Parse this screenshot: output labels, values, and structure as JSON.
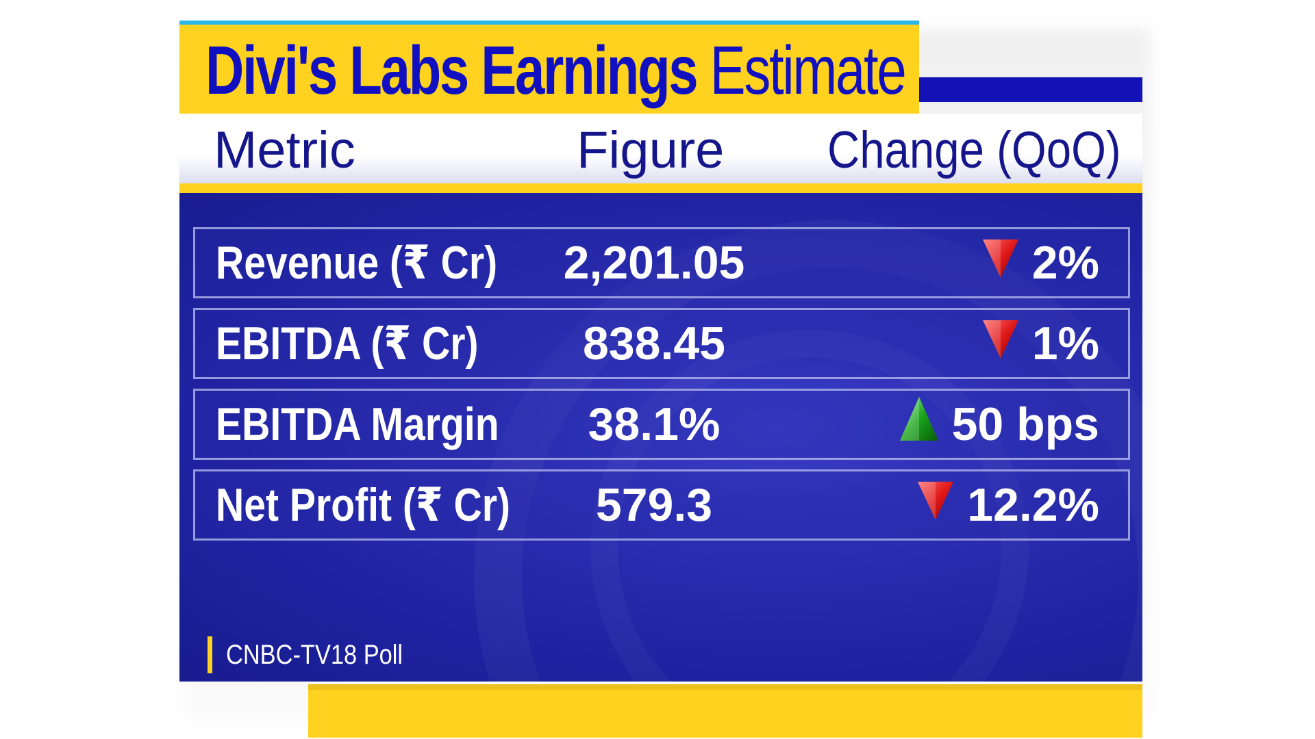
{
  "title": {
    "bold": "Divi's Labs Earnings",
    "light": "Estimate"
  },
  "headers": {
    "metric": "Metric",
    "figure": "Figure",
    "change": "Change (QoQ)"
  },
  "rows": [
    {
      "metric": "Revenue (₹ Cr)",
      "figure": "2,201.05",
      "direction": "down",
      "change": "2%"
    },
    {
      "metric": "EBITDA (₹ Cr)",
      "figure": "838.45",
      "direction": "down",
      "change": "1%"
    },
    {
      "metric": "EBITDA Margin",
      "figure": "38.1%",
      "direction": "up",
      "change": "50 bps"
    },
    {
      "metric": "Net Profit (₹ Cr)",
      "figure": "579.3",
      "direction": "down",
      "change": "12.2%"
    }
  ],
  "source": "CNBC-TV18 Poll",
  "icons": {
    "down": "red-down-triangle-icon",
    "up": "green-up-triangle-icon"
  },
  "colors": {
    "title_bg": "#ffd21f",
    "title_text": "#1010c0",
    "panel": "#2326a6",
    "down": "#e01818",
    "up": "#1aa61a"
  }
}
